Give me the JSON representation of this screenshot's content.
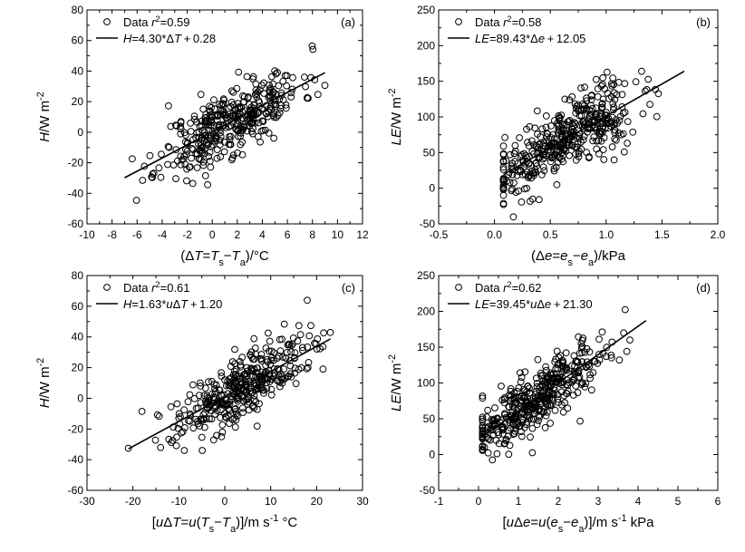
{
  "chart_data": [
    {
      "type": "scatter",
      "panel": "(a)",
      "xlabel": "(ΔT=Ts−Ta)/°C",
      "ylabel": "H/W m⁻²",
      "xlim": [
        -10,
        12
      ],
      "ylim": [
        -60,
        80
      ],
      "xticks": [
        -10,
        -8,
        -6,
        -4,
        -2,
        0,
        2,
        4,
        6,
        8,
        10,
        12
      ],
      "yticks": [
        -60,
        -40,
        -20,
        0,
        20,
        40,
        60,
        80
      ],
      "xtick_labels": [
        "-10",
        "-8",
        "-6",
        "-4",
        "-2",
        "0",
        "2",
        "4",
        "6",
        "8",
        "10",
        "12"
      ],
      "ytick_labels": [
        "-60",
        "-40",
        "-20",
        "0",
        "20",
        "40",
        "60",
        "80"
      ],
      "legend": {
        "placement": "top-left",
        "data_label": "Data",
        "stat": "r²=0.59",
        "fit_label": "H=4.30*ΔT+0.28"
      },
      "fit": {
        "slope": 4.3,
        "intercept": 0.28,
        "x_range": [
          -7,
          9
        ]
      },
      "scatter": {
        "n": 380,
        "x_range": [
          -7,
          9
        ],
        "x_mean": 1.5,
        "x_sd": 2.8,
        "noise_sd": 11,
        "seed": 11
      }
    },
    {
      "type": "scatter",
      "panel": "(b)",
      "xlabel": "(Δe=es−ea)/kPa",
      "ylabel": "LE/W m⁻²",
      "xlim": [
        -0.5,
        2.0
      ],
      "ylim": [
        -50,
        250
      ],
      "xticks": [
        -0.5,
        0,
        0.5,
        1.0,
        1.5,
        2.0
      ],
      "yticks": [
        -50,
        0,
        50,
        100,
        150,
        200,
        250
      ],
      "xtick_labels": [
        "-0.5",
        "0.0",
        "0.5",
        "1.0",
        "1.5",
        "2.0"
      ],
      "ytick_labels": [
        "-50",
        "0",
        "50",
        "100",
        "150",
        "200",
        "250"
      ],
      "legend": {
        "placement": "top-left",
        "data_label": "Data",
        "stat": "r²=0.58",
        "fit_label": "LE=89.43*Δe+12.05"
      },
      "fit": {
        "slope": 89.43,
        "intercept": 12.05,
        "x_range": [
          0.08,
          1.7
        ]
      },
      "scatter": {
        "n": 420,
        "x_range": [
          0.08,
          1.7
        ],
        "x_mean": 0.65,
        "x_sd": 0.32,
        "noise_sd": 24,
        "seed": 22
      }
    },
    {
      "type": "scatter",
      "panel": "(c)",
      "xlabel": "[uΔT=u(Ts−Ta)]/m s⁻¹ °C",
      "ylabel": "H/W m⁻²",
      "xlim": [
        -30,
        30
      ],
      "ylim": [
        -60,
        80
      ],
      "xticks": [
        -30,
        -20,
        -10,
        0,
        10,
        20,
        30
      ],
      "yticks": [
        -60,
        -40,
        -20,
        0,
        20,
        40,
        60,
        80
      ],
      "xtick_labels": [
        "-30",
        "-20",
        "-10",
        "0",
        "10",
        "20",
        "30"
      ],
      "ytick_labels": [
        "-60",
        "-40",
        "-20",
        "0",
        "20",
        "40",
        "60",
        "80"
      ],
      "legend": {
        "placement": "top-left",
        "data_label": "Data",
        "stat": "r²=0.61",
        "fit_label": "H=1.63*uΔT+1.20"
      },
      "fit": {
        "slope": 1.63,
        "intercept": 1.2,
        "x_range": [
          -21,
          23
        ]
      },
      "scatter": {
        "n": 380,
        "x_range": [
          -21,
          23
        ],
        "x_mean": 4,
        "x_sd": 7.5,
        "noise_sd": 10,
        "seed": 33
      }
    },
    {
      "type": "scatter",
      "panel": "(d)",
      "xlabel": "[uΔe=u(es−ea)]/m s⁻¹ kPa",
      "ylabel": "LE/W m⁻²",
      "xlim": [
        -1,
        6
      ],
      "ylim": [
        -50,
        250
      ],
      "xticks": [
        -1,
        0,
        1,
        2,
        3,
        4,
        5,
        6
      ],
      "yticks": [
        -50,
        0,
        50,
        100,
        150,
        200,
        250
      ],
      "xtick_labels": [
        "-1",
        "0",
        "1",
        "2",
        "3",
        "4",
        "5",
        "6"
      ],
      "ytick_labels": [
        "-50",
        "0",
        "50",
        "100",
        "150",
        "200",
        "250"
      ],
      "legend": {
        "placement": "top-left",
        "data_label": "Data",
        "stat": "r²=0.62",
        "fit_label": "LE=39.45*uΔe+21.30"
      },
      "fit": {
        "slope": 39.45,
        "intercept": 21.3,
        "x_range": [
          0.1,
          4.2
        ]
      },
      "scatter": {
        "n": 420,
        "x_range": [
          0.1,
          4.2
        ],
        "x_mean": 1.4,
        "x_sd": 0.9,
        "noise_sd": 22,
        "seed": 44
      }
    }
  ]
}
